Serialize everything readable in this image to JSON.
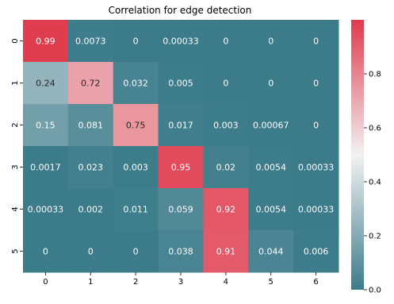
{
  "chart_data": {
    "type": "heatmap",
    "title": "Correlation for edge detection",
    "xlabel": "",
    "ylabel": "",
    "x_ticks": [
      "0",
      "1",
      "2",
      "3",
      "4",
      "5",
      "6"
    ],
    "y_ticks": [
      "0",
      "1",
      "2",
      "3",
      "4",
      "5"
    ],
    "values": [
      [
        0.99,
        0.0073,
        0,
        0.00033,
        0,
        0,
        0
      ],
      [
        0.24,
        0.72,
        0.032,
        0.005,
        0,
        0,
        0
      ],
      [
        0.15,
        0.081,
        0.75,
        0.017,
        0.003,
        0.00067,
        0
      ],
      [
        0.0017,
        0.023,
        0.003,
        0.95,
        0.02,
        0.0054,
        0.00033
      ],
      [
        0.00033,
        0.002,
        0.011,
        0.059,
        0.92,
        0.0054,
        0.00033
      ],
      [
        0,
        0,
        0,
        0.038,
        0.91,
        0.044,
        0.006
      ]
    ],
    "cell_labels": [
      [
        "0.99",
        "0.0073",
        "0",
        "0.00033",
        "0",
        "0",
        "0"
      ],
      [
        "0.24",
        "0.72",
        "0.032",
        "0.005",
        "0",
        "0",
        "0"
      ],
      [
        "0.15",
        "0.081",
        "0.75",
        "0.017",
        "0.003",
        "0.00067",
        "0"
      ],
      [
        "0.0017",
        "0.023",
        "0.003",
        "0.95",
        "0.02",
        "0.0054",
        "0.00033"
      ],
      [
        "0.00033",
        "0.002",
        "0.011",
        "0.059",
        "0.92",
        "0.0054",
        "0.00033"
      ],
      [
        "0",
        "0",
        "0",
        "0.038",
        "0.91",
        "0.044",
        "0.006"
      ]
    ],
    "colorbar": {
      "vmin": 0,
      "vmax": 1,
      "ticks": [
        0.0,
        0.2,
        0.4,
        0.6,
        0.8
      ],
      "tick_labels": [
        "0.0",
        "0.2",
        "0.4",
        "0.6",
        "0.8"
      ],
      "low_color": "#3b7b8a",
      "mid_color": "#f2f2f2",
      "high_color": "#e03a4c"
    },
    "grid": false,
    "legend": "colorbar-right"
  }
}
